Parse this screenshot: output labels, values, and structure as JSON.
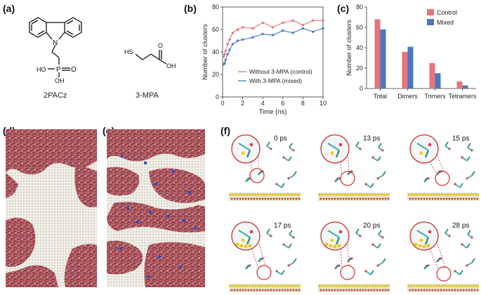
{
  "panels": {
    "a": {
      "label": "(a)",
      "molecules": [
        {
          "name": "2PACz",
          "atoms": {
            "N": "N",
            "P": "P",
            "O": "O",
            "HO": "HO",
            "OH": "OH"
          }
        },
        {
          "name": "3-MPA",
          "atoms": {
            "HS": "HS",
            "O": "O",
            "OH": "OH"
          }
        }
      ]
    },
    "b": {
      "label": "(b)"
    },
    "c": {
      "label": "(c)"
    },
    "d": {
      "label": "(d)"
    },
    "e": {
      "label": "(e)"
    },
    "f": {
      "label": "(f)",
      "times": [
        "0 ps",
        "13 ps",
        "15 ps",
        "17 ps",
        "20 ps",
        "28 ps"
      ]
    }
  },
  "chart_data": [
    {
      "type": "line",
      "xlabel": "Time (ns)",
      "ylabel": "Number of clusters",
      "xlim": [
        0,
        10
      ],
      "ylim": [
        0,
        80
      ],
      "xticks": [
        0,
        2,
        4,
        6,
        8,
        10
      ],
      "yticks": [
        0,
        20,
        40,
        60,
        80
      ],
      "legend_position": "bottom-right",
      "series": [
        {
          "name": "Without 3-MPA (control)",
          "color": "#e8747c",
          "x": [
            0.1,
            0.2,
            0.3,
            0.5,
            0.7,
            1.0,
            1.5,
            2,
            3,
            4,
            5,
            6,
            7,
            8,
            9,
            10
          ],
          "y": [
            36,
            38,
            41,
            47,
            51,
            57,
            60,
            62,
            61,
            66,
            62,
            66,
            68,
            64,
            68,
            68
          ]
        },
        {
          "name": "With 3-MPA (mixed)",
          "color": "#4a78c2",
          "x": [
            0.1,
            0.2,
            0.3,
            0.5,
            0.7,
            1.0,
            1.5,
            2,
            3,
            4,
            5,
            6,
            7,
            8,
            9,
            10
          ],
          "y": [
            29,
            30,
            33,
            38,
            42,
            47,
            50,
            51,
            53,
            56,
            55,
            59,
            57,
            61,
            58,
            61
          ]
        }
      ]
    },
    {
      "type": "bar",
      "ylabel": "Number of clusters",
      "ylim": [
        0,
        80
      ],
      "yticks": [
        0,
        20,
        40,
        60,
        80
      ],
      "legend_position": "top-right",
      "categories": [
        "Total",
        "Dimers",
        "Trimers",
        "Tetramers"
      ],
      "series": [
        {
          "name": "Control",
          "color": "#e8747c",
          "values": [
            68,
            36,
            25,
            7
          ]
        },
        {
          "name": "Mixed",
          "color": "#4a78c2",
          "values": [
            58,
            41,
            15,
            3
          ]
        }
      ]
    }
  ]
}
